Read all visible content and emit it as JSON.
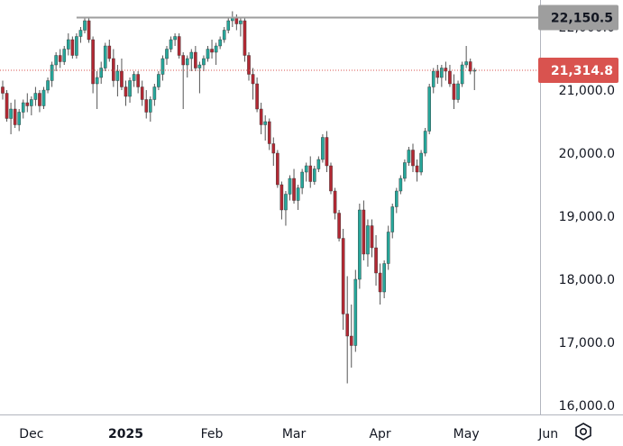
{
  "chart_data": {
    "type": "candlestick",
    "y_axis": {
      "min": 16000,
      "max": 22400,
      "ticks": [
        "16,000.0",
        "17,000.0",
        "18,000.0",
        "19,000.0",
        "20,000.0",
        "21,000.0",
        "22,000.0"
      ],
      "tick_values": [
        16000,
        17000,
        18000,
        19000,
        20000,
        21000,
        22000
      ]
    },
    "x_axis": {
      "labels": [
        "Dec",
        "2025",
        "Feb",
        "Mar",
        "Apr",
        "May",
        "Jun"
      ],
      "label_bar_index": [
        7,
        30,
        51,
        71,
        92,
        113,
        133
      ]
    },
    "resistance_level": {
      "value": 22150.5,
      "label": "22,150.5",
      "start_bar": 18
    },
    "current_price": {
      "value": 21314.8,
      "label": "21,314.8"
    },
    "colors": {
      "up": "#26a69a",
      "down": "#b22833",
      "wick": "#555555",
      "resistance": "#9e9e9e",
      "current": "#d9534f",
      "axis_text": "#131722",
      "border": "#b2b5be"
    },
    "candles": [
      [
        21050,
        21150,
        20850,
        20950
      ],
      [
        20950,
        21000,
        20500,
        20550
      ],
      [
        20550,
        20800,
        20300,
        20700
      ],
      [
        20700,
        20850,
        20400,
        20450
      ],
      [
        20450,
        20700,
        20350,
        20650
      ],
      [
        20650,
        20850,
        20550,
        20800
      ],
      [
        20800,
        20950,
        20650,
        20750
      ],
      [
        20750,
        20900,
        20600,
        20850
      ],
      [
        20850,
        21050,
        20750,
        20950
      ],
      [
        20950,
        21000,
        20650,
        20750
      ],
      [
        20750,
        21050,
        20700,
        21000
      ],
      [
        21000,
        21200,
        20950,
        21150
      ],
      [
        21150,
        21450,
        21050,
        21400
      ],
      [
        21400,
        21600,
        21300,
        21550
      ],
      [
        21550,
        21650,
        21350,
        21450
      ],
      [
        21450,
        21700,
        21400,
        21650
      ],
      [
        21650,
        21900,
        21550,
        21800
      ],
      [
        21800,
        21850,
        21500,
        21550
      ],
      [
        21550,
        21900,
        21500,
        21850
      ],
      [
        21850,
        22000,
        21750,
        21950
      ],
      [
        21950,
        22150,
        21900,
        22100
      ],
      [
        22100,
        22150,
        21750,
        21800
      ],
      [
        21800,
        21850,
        20950,
        21100
      ],
      [
        21100,
        21300,
        20700,
        21200
      ],
      [
        21200,
        21450,
        21100,
        21350
      ],
      [
        21350,
        21750,
        21300,
        21700
      ],
      [
        21700,
        21800,
        21450,
        21500
      ],
      [
        21500,
        21650,
        21050,
        21150
      ],
      [
        21150,
        21400,
        20900,
        21300
      ],
      [
        21300,
        21500,
        21000,
        21050
      ],
      [
        21050,
        21150,
        20750,
        20900
      ],
      [
        20900,
        21200,
        20800,
        21150
      ],
      [
        21150,
        21300,
        21050,
        21250
      ],
      [
        21250,
        21300,
        20950,
        21050
      ],
      [
        21050,
        21150,
        20750,
        20850
      ],
      [
        20850,
        21000,
        20550,
        20650
      ],
      [
        20650,
        20900,
        20500,
        20850
      ],
      [
        20850,
        21100,
        20750,
        21050
      ],
      [
        21050,
        21300,
        21000,
        21250
      ],
      [
        21250,
        21550,
        21150,
        21500
      ],
      [
        21500,
        21700,
        21400,
        21650
      ],
      [
        21650,
        21850,
        21600,
        21800
      ],
      [
        21800,
        21900,
        21700,
        21850
      ],
      [
        21850,
        21900,
        21500,
        21550
      ],
      [
        21550,
        21600,
        20700,
        21400
      ],
      [
        21400,
        21550,
        21200,
        21500
      ],
      [
        21500,
        21650,
        21300,
        21600
      ],
      [
        21600,
        21700,
        21300,
        21350
      ],
      [
        21350,
        21450,
        20950,
        21400
      ],
      [
        21400,
        21550,
        21300,
        21500
      ],
      [
        21500,
        21700,
        21450,
        21650
      ],
      [
        21650,
        21800,
        21500,
        21600
      ],
      [
        21600,
        21750,
        21400,
        21700
      ],
      [
        21700,
        21850,
        21650,
        21800
      ],
      [
        21800,
        22000,
        21750,
        21950
      ],
      [
        21950,
        22150,
        21900,
        22100
      ],
      [
        22100,
        22250,
        22000,
        22150
      ],
      [
        22150,
        22200,
        21950,
        22050
      ],
      [
        22050,
        22150,
        21850,
        22100
      ],
      [
        22100,
        22150,
        21450,
        21550
      ],
      [
        21550,
        21600,
        21150,
        21250
      ],
      [
        21250,
        21350,
        20850,
        21100
      ],
      [
        21100,
        21200,
        20650,
        20700
      ],
      [
        20700,
        20800,
        20300,
        20450
      ],
      [
        20450,
        20600,
        20200,
        20500
      ],
      [
        20500,
        20550,
        20050,
        20150
      ],
      [
        20150,
        20250,
        19800,
        20000
      ],
      [
        20000,
        20050,
        19450,
        19500
      ],
      [
        19500,
        19550,
        18950,
        19100
      ],
      [
        19100,
        19400,
        18850,
        19350
      ],
      [
        19350,
        19650,
        19250,
        19600
      ],
      [
        19600,
        19750,
        19200,
        19250
      ],
      [
        19250,
        19500,
        19100,
        19450
      ],
      [
        19450,
        19750,
        19350,
        19700
      ],
      [
        19700,
        19850,
        19550,
        19800
      ],
      [
        19800,
        19950,
        19450,
        19550
      ],
      [
        19550,
        19800,
        19500,
        19750
      ],
      [
        19750,
        19950,
        19700,
        19900
      ],
      [
        19900,
        20300,
        19850,
        20250
      ],
      [
        20250,
        20350,
        19700,
        19800
      ],
      [
        19800,
        19850,
        19350,
        19400
      ],
      [
        19400,
        19450,
        18950,
        19050
      ],
      [
        19050,
        19100,
        18600,
        18650
      ],
      [
        18650,
        18800,
        17200,
        17450
      ],
      [
        17450,
        18050,
        16350,
        17100
      ],
      [
        17100,
        17600,
        16600,
        16950
      ],
      [
        16950,
        18150,
        16850,
        18000
      ],
      [
        18000,
        19200,
        17850,
        19100
      ],
      [
        19100,
        19250,
        18300,
        18400
      ],
      [
        18400,
        18950,
        18200,
        18850
      ],
      [
        18850,
        18950,
        18350,
        18500
      ],
      [
        18500,
        18700,
        17900,
        18100
      ],
      [
        18100,
        18250,
        17600,
        17800
      ],
      [
        17800,
        18300,
        17700,
        18250
      ],
      [
        18250,
        18850,
        18150,
        18750
      ],
      [
        18750,
        19200,
        18650,
        19150
      ],
      [
        19150,
        19450,
        19050,
        19400
      ],
      [
        19400,
        19650,
        19350,
        19600
      ],
      [
        19600,
        19900,
        19550,
        19850
      ],
      [
        19850,
        20100,
        19800,
        20050
      ],
      [
        20050,
        20150,
        19700,
        19800
      ],
      [
        19800,
        19900,
        19550,
        19700
      ],
      [
        19700,
        20050,
        19650,
        20000
      ],
      [
        20000,
        20400,
        19950,
        20350
      ],
      [
        20350,
        21100,
        20300,
        21050
      ],
      [
        21050,
        21350,
        20950,
        21300
      ],
      [
        21300,
        21400,
        21100,
        21200
      ],
      [
        21200,
        21400,
        21050,
        21350
      ],
      [
        21350,
        21450,
        21150,
        21300
      ],
      [
        21300,
        21400,
        21050,
        21100
      ],
      [
        21100,
        21250,
        20700,
        20850
      ],
      [
        20850,
        21150,
        20800,
        21100
      ],
      [
        21100,
        21450,
        21050,
        21400
      ],
      [
        21400,
        21700,
        21350,
        21450
      ],
      [
        21450,
        21500,
        21250,
        21300
      ],
      [
        21300,
        21350,
        21000,
        21314.8
      ]
    ]
  },
  "ui": {
    "settings_icon": "gear-hexagon-icon"
  }
}
